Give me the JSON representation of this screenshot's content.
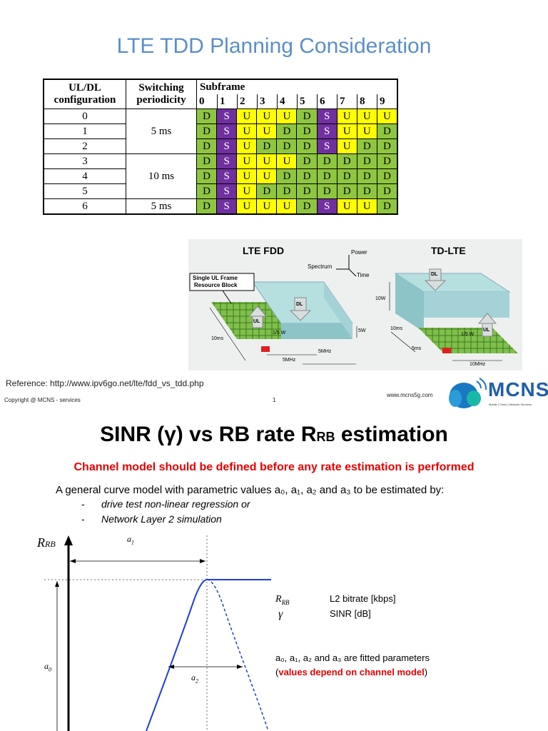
{
  "slide1": {
    "title": "LTE TDD Planning Consideration",
    "table": {
      "col_config": [
        "UL/DL",
        "configuration"
      ],
      "col_period": [
        "Switching",
        "periodicity"
      ],
      "col_subframe": "Subframe",
      "subframe_numbers": [
        "0",
        "1",
        "2",
        "3",
        "4",
        "5",
        "6",
        "7",
        "8",
        "9"
      ],
      "periodicity_groups": [
        {
          "label": "5 ms",
          "rows": 3
        },
        {
          "label": "10 ms",
          "rows": 3
        },
        {
          "label": "5 ms",
          "rows": 1
        }
      ],
      "rows": [
        {
          "config": "0",
          "cells": [
            "D",
            "S",
            "U",
            "U",
            "U",
            "D",
            "S",
            "U",
            "U",
            "U"
          ]
        },
        {
          "config": "1",
          "cells": [
            "D",
            "S",
            "U",
            "U",
            "D",
            "D",
            "S",
            "U",
            "U",
            "D"
          ]
        },
        {
          "config": "2",
          "cells": [
            "D",
            "S",
            "U",
            "D",
            "D",
            "D",
            "S",
            "U",
            "D",
            "D"
          ]
        },
        {
          "config": "3",
          "cells": [
            "D",
            "S",
            "U",
            "U",
            "U",
            "D",
            "D",
            "D",
            "D",
            "D"
          ]
        },
        {
          "config": "4",
          "cells": [
            "D",
            "S",
            "U",
            "U",
            "D",
            "D",
            "D",
            "D",
            "D",
            "D"
          ]
        },
        {
          "config": "5",
          "cells": [
            "D",
            "S",
            "U",
            "D",
            "D",
            "D",
            "D",
            "D",
            "D",
            "D"
          ]
        },
        {
          "config": "6",
          "cells": [
            "D",
            "S",
            "U",
            "U",
            "U",
            "D",
            "S",
            "U",
            "U",
            "D"
          ]
        }
      ],
      "colors": {
        "D": "#8ec63f",
        "S": "#7030a0",
        "U": "#ffff00"
      }
    },
    "diagram": {
      "fdd_title": "LTE FDD",
      "tdd_title": "TD-LTE",
      "axis_power": "Power",
      "axis_spectrum": "Spectrum",
      "axis_time": "Time",
      "callout_line1": "Single UL Frame",
      "callout_line2": "Resource Block",
      "fdd_ul": "UL",
      "fdd_dl": "DL",
      "fdd_ul_power": "1/5 W",
      "fdd_dl_power": "5W",
      "fdd_time": "10ms",
      "fdd_bw1": "5MHz",
      "fdd_bw2": "5MHz",
      "tdd_dl": "DL",
      "tdd_ul": "UL",
      "tdd_dl_power": "10W",
      "tdd_ul_power": "1/5 W",
      "tdd_time1": "10ms",
      "tdd_time2": "5ms",
      "tdd_bw": "10MHz"
    },
    "reference": "Reference: http://www.ipv6go.net/lte/fdd_vs_tdd.php",
    "copyright": "Copyright @ MCNS - services",
    "page_number": "1",
    "website": "www.mcns5g.com",
    "logo_text": "MCNS",
    "logo_tagline": "Mobile | Cloud | Network Services"
  },
  "slide2": {
    "title_main": "SINR (γ) vs RB rate R",
    "title_sub": "RB",
    "title_end": " estimation",
    "red_line": "Channel model should be defined before any rate estimation is performed",
    "general_text": "A general curve model with parametric values a₀, a₁, a₂ and a₃ to be estimated by:",
    "bullets": [
      "drive test non-linear regression or",
      "Network Layer 2 simulation"
    ],
    "graph": {
      "y_axis_label": "R",
      "y_axis_sub": "RB",
      "a1_label": "a",
      "a1_sub": "1",
      "a0_label": "a",
      "a0_sub": "0",
      "a2_label": "a",
      "a2_sub": "2"
    },
    "legend": {
      "rrb_symbol": "R",
      "rrb_sub": "RB",
      "rrb_desc": "L2 bitrate [kbps]",
      "gamma_symbol": "γ",
      "gamma_desc": "SINR [dB]",
      "fitted_text": "a₀, a₁, a₂ and a₃ are fitted parameters",
      "paren_open": "(",
      "note_red": "values depend on channel model",
      "paren_close": ")"
    }
  }
}
